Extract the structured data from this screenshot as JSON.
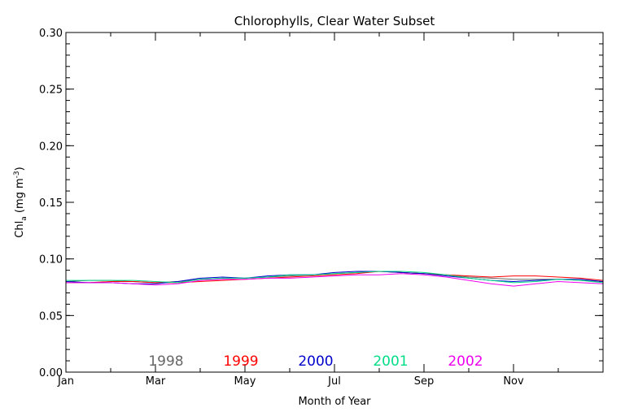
{
  "chart_data": {
    "type": "line",
    "title": "Chlorophylls, Clear Water Subset",
    "xlabel": "Month of Year",
    "ylabel_main": "Chl",
    "ylabel_sub": "a",
    "ylabel_unit": " (mg m",
    "ylabel_exp": "-3",
    "ylabel_close": ")",
    "xlim": [
      1,
      13
    ],
    "ylim": [
      0,
      0.3
    ],
    "x_ticks": [
      {
        "x": 1,
        "label": "Jan"
      },
      {
        "x": 3,
        "label": "Mar"
      },
      {
        "x": 5,
        "label": "May"
      },
      {
        "x": 7,
        "label": "Jul"
      },
      {
        "x": 9,
        "label": "Sep"
      },
      {
        "x": 11,
        "label": "Nov"
      }
    ],
    "y_ticks": [
      {
        "y": 0.0,
        "label": "0.00"
      },
      {
        "y": 0.05,
        "label": "0.05"
      },
      {
        "y": 0.1,
        "label": "0.10"
      },
      {
        "y": 0.15,
        "label": "0.15"
      },
      {
        "y": 0.2,
        "label": "0.20"
      },
      {
        "y": 0.25,
        "label": "0.25"
      },
      {
        "y": 0.3,
        "label": "0.30"
      }
    ],
    "x": [
      1.0,
      1.5,
      2.0,
      2.5,
      3.0,
      3.5,
      4.0,
      4.5,
      5.0,
      5.5,
      6.0,
      6.5,
      7.0,
      7.5,
      8.0,
      8.5,
      9.0,
      9.5,
      10.0,
      10.5,
      11.0,
      11.5,
      12.0,
      12.5,
      13.0
    ],
    "series": [
      {
        "name": "1998",
        "color": "#666666",
        "values": [
          0.08,
          0.081,
          0.081,
          0.08,
          0.079,
          0.08,
          0.082,
          0.083,
          0.083,
          0.084,
          0.085,
          0.086,
          0.087,
          0.088,
          0.089,
          0.088,
          0.087,
          0.086,
          0.084,
          0.083,
          0.082,
          0.082,
          0.082,
          0.081,
          0.08
        ]
      },
      {
        "name": "1999",
        "color": "#ff0000",
        "values": [
          0.079,
          0.079,
          0.08,
          0.08,
          0.079,
          0.079,
          0.08,
          0.081,
          0.082,
          0.083,
          0.084,
          0.085,
          0.086,
          0.087,
          0.089,
          0.088,
          0.087,
          0.086,
          0.085,
          0.084,
          0.085,
          0.085,
          0.084,
          0.083,
          0.081
        ]
      },
      {
        "name": "2000",
        "color": "#0000cc",
        "values": [
          0.08,
          0.079,
          0.079,
          0.078,
          0.078,
          0.08,
          0.083,
          0.084,
          0.083,
          0.085,
          0.086,
          0.086,
          0.088,
          0.089,
          0.089,
          0.088,
          0.087,
          0.085,
          0.083,
          0.081,
          0.08,
          0.081,
          0.082,
          0.082,
          0.08
        ]
      },
      {
        "name": "2001",
        "color": "#00dd88",
        "values": [
          0.081,
          0.081,
          0.081,
          0.081,
          0.08,
          0.079,
          0.082,
          0.083,
          0.083,
          0.084,
          0.086,
          0.086,
          0.087,
          0.088,
          0.089,
          0.089,
          0.088,
          0.086,
          0.083,
          0.081,
          0.079,
          0.08,
          0.082,
          0.081,
          0.079
        ]
      },
      {
        "name": "2002",
        "color": "#ee00ee",
        "values": [
          0.079,
          0.079,
          0.079,
          0.078,
          0.077,
          0.078,
          0.081,
          0.082,
          0.082,
          0.083,
          0.083,
          0.084,
          0.085,
          0.086,
          0.086,
          0.087,
          0.086,
          0.084,
          0.081,
          0.078,
          0.076,
          0.078,
          0.08,
          0.079,
          0.078
        ]
      }
    ]
  }
}
